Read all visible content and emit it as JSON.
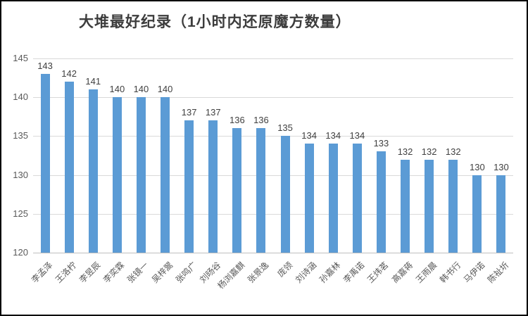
{
  "chart_data": {
    "type": "bar",
    "title": "大堆最好纪录（1小时内还原魔方数量）",
    "categories": [
      "李孟泽",
      "王洛柠",
      "李昱辰",
      "李奕霖",
      "张镜一",
      "吴梓翯",
      "张鸣广",
      "刘旸谷",
      "杨浏嘉麒",
      "张景逸",
      "庞领",
      "刘诗涵",
      "孙嘉林",
      "李禹诺",
      "王炜茗",
      "高嘉蒋",
      "王雨晨",
      "韩书行",
      "马伊诺",
      "陈祉圻"
    ],
    "values": [
      143,
      142,
      141,
      140,
      140,
      140,
      137,
      137,
      136,
      136,
      135,
      134,
      134,
      134,
      133,
      132,
      132,
      132,
      130,
      130
    ],
    "xlabel": "",
    "ylabel": "",
    "ylim": [
      120,
      145
    ],
    "yticks": [
      120,
      125,
      130,
      135,
      140,
      145
    ],
    "grid": true,
    "legend_position": "none",
    "data_labels": true,
    "x_label_rotation_deg": 45,
    "bar_color": "#5b9bd5",
    "gridline_color": "#d9d9d9",
    "axis_line_color": "#bfbfbf",
    "tick_label_color": "#595959",
    "data_label_color": "#404040",
    "title_color": "#3d3d3d"
  }
}
